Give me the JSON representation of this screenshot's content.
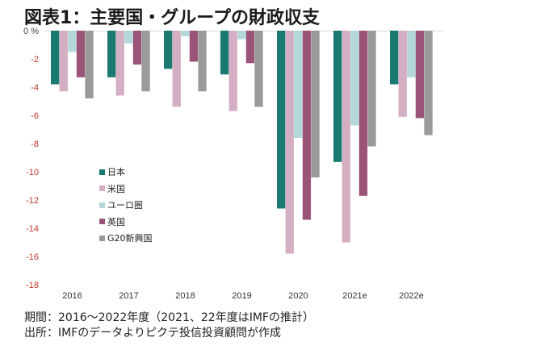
{
  "title": "図表1：主要国・グループの財政収支",
  "notes": {
    "period": "期間：2016～2022年度（2021、22年度はIMFの推計）",
    "source": "出所：IMFのデータよりピクテ投信投資顧問が作成"
  },
  "chart_data": {
    "type": "bar",
    "title": "図表1：主要国・グループの財政収支",
    "xlabel": "",
    "ylabel": "%",
    "ylim": [
      -18,
      0
    ],
    "yticks": [
      0,
      -2,
      -4,
      -6,
      -8,
      -10,
      -12,
      -14,
      -16,
      -18
    ],
    "ytick_labels": [
      "0 %",
      "-2",
      "-4",
      "-6",
      "-8",
      "-10",
      "-12",
      "-14",
      "-16",
      "-18"
    ],
    "grid": false,
    "legend_position": "center-left",
    "categories": [
      "2016",
      "2017",
      "2018",
      "2019",
      "2020",
      "2021e",
      "2022e"
    ],
    "series": [
      {
        "name": "日本",
        "color": "#1a7a72",
        "values": [
          -3.8,
          -3.3,
          -2.7,
          -3.1,
          -12.6,
          -9.3,
          -3.8
        ]
      },
      {
        "name": "米国",
        "color": "#d4afc3",
        "values": [
          -4.3,
          -4.6,
          -5.4,
          -5.7,
          -15.8,
          -15.0,
          -6.1
        ]
      },
      {
        "name": "ユーロ圏",
        "color": "#b4d8da",
        "values": [
          -1.5,
          -0.9,
          -0.4,
          -0.6,
          -7.6,
          -6.7,
          -3.3
        ]
      },
      {
        "name": "英国",
        "color": "#9a5478",
        "values": [
          -3.3,
          -2.4,
          -2.2,
          -2.3,
          -13.4,
          -11.7,
          -6.2
        ]
      },
      {
        "name": "G20新興国",
        "color": "#9a9a9a",
        "values": [
          -4.8,
          -4.3,
          -4.3,
          -5.4,
          -10.4,
          -8.2,
          -7.4
        ]
      }
    ]
  }
}
